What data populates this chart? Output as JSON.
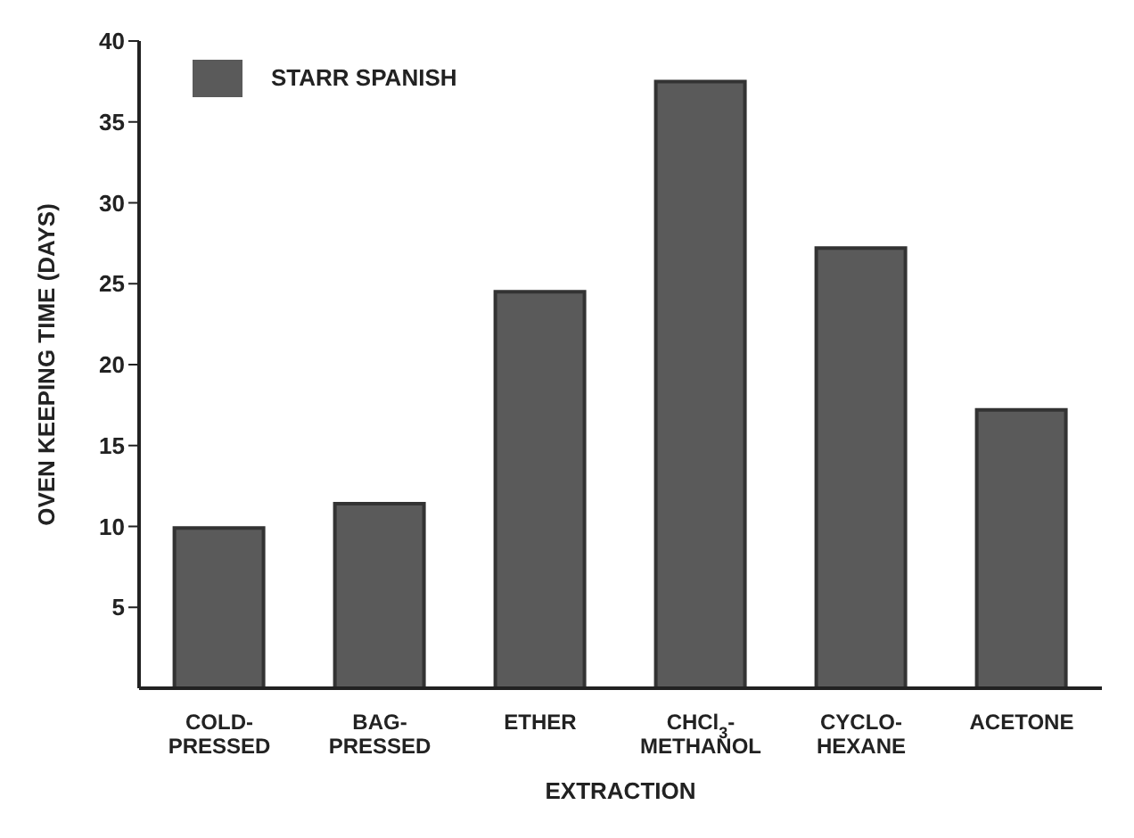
{
  "chart_data": {
    "type": "bar",
    "xlabel": "EXTRACTION",
    "ylabel": "OVEN KEEPING TIME (DAYS)",
    "categories": [
      "COLD-\nPRESSED",
      "BAG-\nPRESSED",
      "ETHER",
      "CHCl$_{3}$-\nMETHANOL",
      "CYCLO-\nHEXANE",
      "ACETONE"
    ],
    "series": [
      {
        "name": "STARR SPANISH",
        "color": "#5a5a5a",
        "values": [
          9.9,
          11.4,
          24.5,
          37.5,
          27.2,
          17.2
        ]
      }
    ],
    "ylim": [
      0,
      40
    ],
    "yticks": [
      5,
      10,
      15,
      20,
      25,
      30,
      35,
      40
    ],
    "grid": false,
    "legend": "top left"
  }
}
